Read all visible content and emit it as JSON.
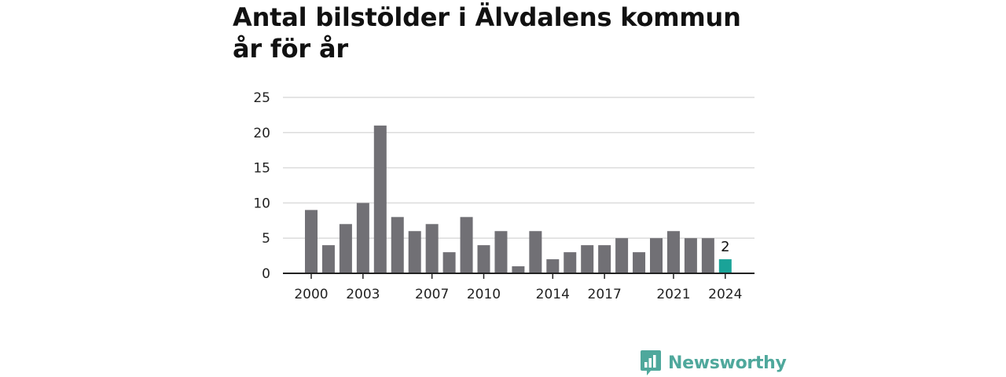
{
  "chart_data": {
    "type": "bar",
    "title": "Antal bilstölder i Älvdalens kommun år för år",
    "categories": [
      "2000",
      "2001",
      "2002",
      "2003",
      "2004",
      "2005",
      "2006",
      "2007",
      "2008",
      "2009",
      "2010",
      "2011",
      "2012",
      "2013",
      "2014",
      "2015",
      "2016",
      "2017",
      "2018",
      "2019",
      "2020",
      "2021",
      "2022",
      "2023",
      "2024"
    ],
    "values": [
      9,
      4,
      7,
      10,
      21,
      8,
      6,
      7,
      3,
      8,
      4,
      6,
      1,
      6,
      2,
      3,
      4,
      4,
      5,
      3,
      5,
      6,
      5,
      5,
      2
    ],
    "x_tick_labels": [
      "2000",
      "2003",
      "2007",
      "2010",
      "2014",
      "2017",
      "2021",
      "2024"
    ],
    "y_ticks": [
      0,
      5,
      10,
      15,
      20,
      25
    ],
    "ylim": [
      0,
      25
    ],
    "grid": true,
    "highlight": {
      "category": "2024",
      "label": "2"
    },
    "colors": {
      "bar": "#717075",
      "highlight": "#1aa398",
      "grid": "#dcdcdc",
      "axis": "#222222"
    }
  },
  "brand": {
    "name": "Newsworthy",
    "icon": "newsworthy-logo-icon"
  }
}
